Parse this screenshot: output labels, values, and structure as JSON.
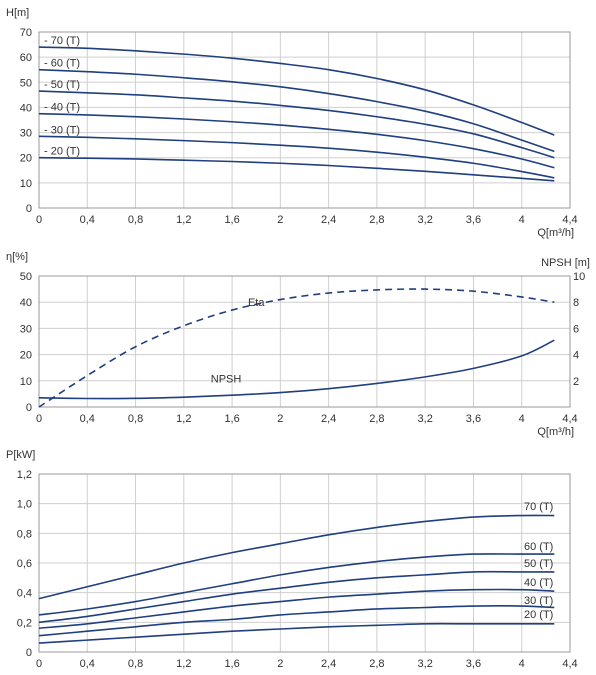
{
  "colors": {
    "curve": "#1f3f7f",
    "grid": "#cfcfcf",
    "text": "#333333"
  },
  "chart_data": [
    {
      "type": "line",
      "ylabel": "H[m]",
      "xlabel": "Q[m³/h]",
      "xlim": [
        0,
        4.4
      ],
      "ylim": [
        0,
        70
      ],
      "x_ticks": [
        "0",
        "0,4",
        "0,8",
        "1,2",
        "1,6",
        "2",
        "2,4",
        "2,8",
        "3,2",
        "3,6",
        "4",
        "4,4"
      ],
      "y_ticks": [
        "0",
        "10",
        "20",
        "30",
        "40",
        "50",
        "60",
        "70"
      ],
      "grid": true,
      "series": [
        {
          "name": "- 70 (T)",
          "x": [
            0,
            0.4,
            0.8,
            1.2,
            1.6,
            2,
            2.4,
            2.8,
            3.2,
            3.6,
            4,
            4.27
          ],
          "y": [
            64,
            63.5,
            62.5,
            61.2,
            59.6,
            57.5,
            55,
            51.5,
            47,
            41,
            34,
            29
          ]
        },
        {
          "name": "- 60 (T)",
          "x": [
            0,
            0.4,
            0.8,
            1.2,
            1.6,
            2,
            2.4,
            2.8,
            3.2,
            3.6,
            4,
            4.27
          ],
          "y": [
            55,
            54.2,
            53.2,
            51.8,
            50.2,
            48.2,
            45.5,
            42.3,
            38.5,
            33.5,
            27,
            22.5
          ]
        },
        {
          "name": "- 50 (T)",
          "x": [
            0,
            0.4,
            0.8,
            1.2,
            1.6,
            2,
            2.4,
            2.8,
            3.2,
            3.6,
            4,
            4.27
          ],
          "y": [
            46.5,
            45.8,
            45,
            43.8,
            42.5,
            40.8,
            38.8,
            36.3,
            33.3,
            29.5,
            24,
            20
          ]
        },
        {
          "name": "- 40 (T)",
          "x": [
            0,
            0.4,
            0.8,
            1.2,
            1.6,
            2,
            2.4,
            2.8,
            3.2,
            3.6,
            4,
            4.27
          ],
          "y": [
            37.5,
            37,
            36.3,
            35.4,
            34.3,
            33,
            31.3,
            29.3,
            26.8,
            23.6,
            19.5,
            16
          ]
        },
        {
          "name": "- 30 (T)",
          "x": [
            0,
            0.4,
            0.8,
            1.2,
            1.6,
            2,
            2.4,
            2.8,
            3.2,
            3.6,
            4,
            4.27
          ],
          "y": [
            28.5,
            28.1,
            27.5,
            26.8,
            26,
            25,
            23.8,
            22.2,
            20.2,
            17.8,
            14.5,
            12
          ]
        },
        {
          "name": "- 20 (T)",
          "x": [
            0,
            0.4,
            0.8,
            1.2,
            1.6,
            2,
            2.4,
            2.8,
            3.2,
            3.6,
            4,
            4.27
          ],
          "y": [
            20,
            19.8,
            19.5,
            19,
            18.5,
            17.8,
            16.9,
            15.8,
            14.6,
            13.2,
            11.8,
            10.8
          ]
        }
      ]
    },
    {
      "type": "line",
      "ylabel": "η[%]",
      "ylabel_right": "NPSH [m]",
      "xlabel": "Q[m³/h]",
      "xlim": [
        0,
        4.4
      ],
      "ylim": [
        0,
        50
      ],
      "ylim_right": [
        0,
        10
      ],
      "x_ticks": [
        "0",
        "0,4",
        "0,8",
        "1,2",
        "1,6",
        "2",
        "2,4",
        "2,8",
        "3,2",
        "3,6",
        "4",
        "4,4"
      ],
      "y_ticks": [
        "0",
        "10",
        "20",
        "30",
        "40",
        "50"
      ],
      "y_ticks_right": [
        "2",
        "4",
        "6",
        "8",
        "10"
      ],
      "grid": true,
      "series": [
        {
          "name": "Eta",
          "axis": "left",
          "style": "dashed",
          "x": [
            0,
            0.4,
            0.8,
            1.2,
            1.6,
            2,
            2.4,
            2.8,
            3.2,
            3.6,
            4,
            4.27
          ],
          "y": [
            0,
            12,
            23,
            31,
            37,
            41,
            43.5,
            44.7,
            45,
            44.2,
            42,
            40
          ]
        },
        {
          "name": "NPSH",
          "axis": "right",
          "style": "solid",
          "x": [
            0,
            0.4,
            0.8,
            1.2,
            1.6,
            2,
            2.4,
            2.8,
            3.2,
            3.6,
            4,
            4.27
          ],
          "y": [
            0.7,
            0.65,
            0.66,
            0.75,
            0.9,
            1.1,
            1.4,
            1.8,
            2.3,
            2.95,
            3.9,
            5.1
          ]
        }
      ]
    },
    {
      "type": "line",
      "ylabel": "P[kW]",
      "xlim": [
        0,
        4.4
      ],
      "ylim": [
        0,
        1.2
      ],
      "x_ticks": [
        "0",
        "0,4",
        "0,8",
        "1,2",
        "1,6",
        "2",
        "2,4",
        "2,8",
        "3,2",
        "3,6",
        "4",
        "4,4"
      ],
      "y_ticks": [
        "0",
        "0,2",
        "0,4",
        "0,6",
        "0,8",
        "1,0",
        "1,2"
      ],
      "grid": true,
      "series": [
        {
          "name": "70 (T)",
          "x": [
            0,
            0.4,
            0.8,
            1.2,
            1.6,
            2,
            2.4,
            2.8,
            3.2,
            3.6,
            4,
            4.27
          ],
          "y": [
            0.36,
            0.44,
            0.52,
            0.6,
            0.67,
            0.73,
            0.79,
            0.84,
            0.88,
            0.91,
            0.92,
            0.92
          ]
        },
        {
          "name": "60 (T)",
          "x": [
            0,
            0.4,
            0.8,
            1.2,
            1.6,
            2,
            2.4,
            2.8,
            3.2,
            3.6,
            4,
            4.27
          ],
          "y": [
            0.25,
            0.29,
            0.34,
            0.4,
            0.46,
            0.52,
            0.57,
            0.61,
            0.64,
            0.66,
            0.66,
            0.66
          ]
        },
        {
          "name": "50 (T)",
          "x": [
            0,
            0.4,
            0.8,
            1.2,
            1.6,
            2,
            2.4,
            2.8,
            3.2,
            3.6,
            4,
            4.27
          ],
          "y": [
            0.2,
            0.24,
            0.29,
            0.34,
            0.39,
            0.43,
            0.47,
            0.5,
            0.52,
            0.54,
            0.54,
            0.54
          ]
        },
        {
          "name": "40 (T)",
          "x": [
            0,
            0.4,
            0.8,
            1.2,
            1.6,
            2,
            2.4,
            2.8,
            3.2,
            3.6,
            4,
            4.27
          ],
          "y": [
            0.16,
            0.19,
            0.23,
            0.27,
            0.31,
            0.34,
            0.37,
            0.39,
            0.41,
            0.42,
            0.42,
            0.41
          ]
        },
        {
          "name": "30 (T)",
          "x": [
            0,
            0.4,
            0.8,
            1.2,
            1.6,
            2,
            2.4,
            2.8,
            3.2,
            3.6,
            4,
            4.27
          ],
          "y": [
            0.11,
            0.14,
            0.17,
            0.2,
            0.22,
            0.25,
            0.27,
            0.29,
            0.3,
            0.31,
            0.31,
            0.3
          ]
        },
        {
          "name": "20 (T)",
          "x": [
            0,
            0.4,
            0.8,
            1.2,
            1.6,
            2,
            2.4,
            2.8,
            3.2,
            3.6,
            4,
            4.27
          ],
          "y": [
            0.06,
            0.08,
            0.1,
            0.12,
            0.14,
            0.155,
            0.17,
            0.18,
            0.19,
            0.19,
            0.19,
            0.19
          ]
        }
      ]
    }
  ]
}
